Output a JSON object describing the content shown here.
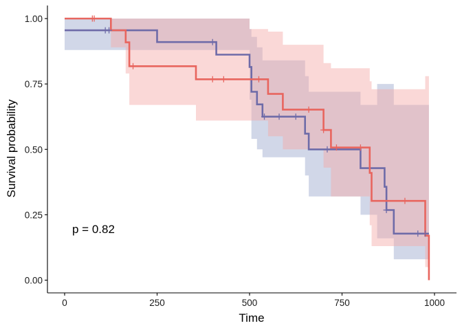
{
  "chart_data": {
    "type": "line",
    "subtype": "kaplan-meier",
    "xlabel": "Time",
    "ylabel": "Survival probability",
    "xlim": [
      0,
      1000
    ],
    "ylim": [
      0,
      1
    ],
    "x_ticks": [
      0,
      250,
      500,
      750,
      1000
    ],
    "y_ticks": [
      0.0,
      0.25,
      0.5,
      0.75,
      1.0
    ],
    "x_tick_labels": [
      "0",
      "250",
      "500",
      "750",
      "1000"
    ],
    "y_tick_labels": [
      "0.00",
      "0.25",
      "0.50",
      "0.75",
      "1.00"
    ],
    "grid": false,
    "legend": "none",
    "annotation": "p = 0.82",
    "series": [
      {
        "color": "#6E6BA8",
        "ci_color": "#9AA6CC",
        "steps": [
          [
            0,
            0.955
          ],
          [
            250,
            0.91
          ],
          [
            410,
            0.862
          ],
          [
            500,
            0.815
          ],
          [
            505,
            0.72
          ],
          [
            520,
            0.672
          ],
          [
            535,
            0.625
          ],
          [
            650,
            0.56
          ],
          [
            660,
            0.5
          ],
          [
            800,
            0.428
          ],
          [
            865,
            0.357
          ],
          [
            870,
            0.268
          ],
          [
            890,
            0.178
          ],
          [
            985,
            0.178
          ]
        ],
        "ci_lower": [
          [
            0,
            0.88
          ],
          [
            120,
            0.88
          ],
          [
            250,
            0.88
          ],
          [
            410,
            0.88
          ],
          [
            500,
            0.69
          ],
          [
            505,
            0.54
          ],
          [
            520,
            0.5
          ],
          [
            535,
            0.47
          ],
          [
            650,
            0.4
          ],
          [
            660,
            0.32
          ],
          [
            730,
            0.32
          ],
          [
            800,
            0.25
          ],
          [
            845,
            0.16
          ],
          [
            890,
            0.08
          ],
          [
            985,
            0.08
          ]
        ],
        "ci_upper": [
          [
            0,
            1.0
          ],
          [
            350,
            1.0
          ],
          [
            360,
            1.0
          ],
          [
            500,
            0.96
          ],
          [
            505,
            0.93
          ],
          [
            520,
            0.89
          ],
          [
            535,
            0.84
          ],
          [
            650,
            0.78
          ],
          [
            660,
            0.72
          ],
          [
            800,
            0.67
          ],
          [
            845,
            0.75
          ],
          [
            875,
            0.75
          ],
          [
            890,
            0.67
          ],
          [
            985,
            0.67
          ]
        ],
        "censor_times": [
          110,
          120,
          400,
          540,
          580,
          625,
          710,
          870,
          955,
          975
        ]
      },
      {
        "color": "#E8655E",
        "ci_color": "#F4A9A6",
        "steps": [
          [
            0,
            1.0
          ],
          [
            125,
            0.955
          ],
          [
            165,
            0.909
          ],
          [
            175,
            0.818
          ],
          [
            355,
            0.768
          ],
          [
            550,
            0.712
          ],
          [
            590,
            0.652
          ],
          [
            700,
            0.574
          ],
          [
            720,
            0.507
          ],
          [
            825,
            0.41
          ],
          [
            830,
            0.303
          ],
          [
            975,
            0.17
          ],
          [
            985,
            0.0
          ]
        ],
        "ci_lower": [
          [
            0,
            1.0
          ],
          [
            125,
            0.89
          ],
          [
            165,
            0.79
          ],
          [
            175,
            0.67
          ],
          [
            355,
            0.61
          ],
          [
            550,
            0.55
          ],
          [
            590,
            0.5
          ],
          [
            700,
            0.43
          ],
          [
            720,
            0.32
          ],
          [
            825,
            0.21
          ],
          [
            830,
            0.13
          ],
          [
            975,
            0.05
          ],
          [
            985,
            0.05
          ]
        ],
        "ci_upper": [
          [
            0,
            1.0
          ],
          [
            360,
            1.0
          ],
          [
            500,
            0.96
          ],
          [
            550,
            0.95
          ],
          [
            590,
            0.9
          ],
          [
            700,
            0.83
          ],
          [
            720,
            0.81
          ],
          [
            825,
            0.76
          ],
          [
            830,
            0.73
          ],
          [
            975,
            0.78
          ],
          [
            985,
            0.78
          ]
        ],
        "censor_times": [
          75,
          80,
          185,
          400,
          430,
          525,
          660,
          700,
          735,
          800,
          920
        ]
      }
    ]
  }
}
